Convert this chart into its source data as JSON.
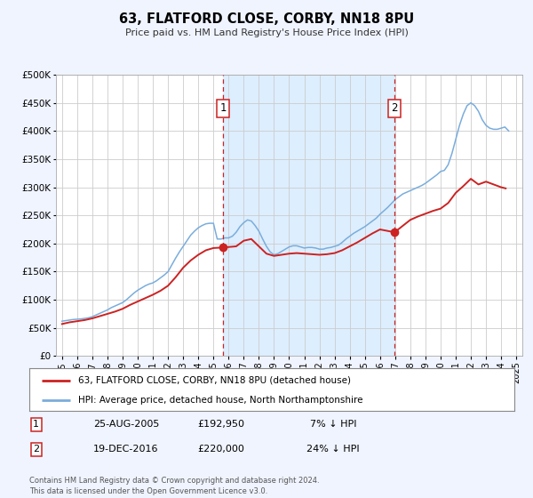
{
  "title": "63, FLATFORD CLOSE, CORBY, NN18 8PU",
  "subtitle": "Price paid vs. HM Land Registry's House Price Index (HPI)",
  "hpi_label": "HPI: Average price, detached house, North Northamptonshire",
  "price_label": "63, FLATFORD CLOSE, CORBY, NN18 8PU (detached house)",
  "ytick_values": [
    0,
    50000,
    100000,
    150000,
    200000,
    250000,
    300000,
    350000,
    400000,
    450000,
    500000
  ],
  "xlim_start": 1994.6,
  "xlim_end": 2025.4,
  "ylim_min": 0,
  "ylim_max": 500000,
  "sale1_date": 2005.647,
  "sale1_price": 192950,
  "sale1_label": "1",
  "sale1_text": "25-AUG-2005",
  "sale1_amount": "£192,950",
  "sale1_pct": "7% ↓ HPI",
  "sale2_date": 2016.963,
  "sale2_price": 220000,
  "sale2_label": "2",
  "sale2_text": "19-DEC-2016",
  "sale2_amount": "£220,000",
  "sale2_pct": "24% ↓ HPI",
  "bg_color": "#f0f4ff",
  "plot_bg_color": "#ffffff",
  "hpi_color": "#7aaddc",
  "price_color": "#cc2222",
  "sale_dot_color": "#cc2222",
  "vline_color": "#cc2222",
  "grid_color": "#cccccc",
  "shade_color": "#ddeeff",
  "footer_text": "Contains HM Land Registry data © Crown copyright and database right 2024.\nThis data is licensed under the Open Government Licence v3.0.",
  "hpi_data_x": [
    1995.0,
    1995.25,
    1995.5,
    1995.75,
    1996.0,
    1996.25,
    1996.5,
    1996.75,
    1997.0,
    1997.25,
    1997.5,
    1997.75,
    1998.0,
    1998.25,
    1998.5,
    1998.75,
    1999.0,
    1999.25,
    1999.5,
    1999.75,
    2000.0,
    2000.25,
    2000.5,
    2000.75,
    2001.0,
    2001.25,
    2001.5,
    2001.75,
    2002.0,
    2002.25,
    2002.5,
    2002.75,
    2003.0,
    2003.25,
    2003.5,
    2003.75,
    2004.0,
    2004.25,
    2004.5,
    2004.75,
    2005.0,
    2005.25,
    2005.5,
    2005.75,
    2006.0,
    2006.25,
    2006.5,
    2006.75,
    2007.0,
    2007.25,
    2007.5,
    2007.75,
    2008.0,
    2008.25,
    2008.5,
    2008.75,
    2009.0,
    2009.25,
    2009.5,
    2009.75,
    2010.0,
    2010.25,
    2010.5,
    2010.75,
    2011.0,
    2011.25,
    2011.5,
    2011.75,
    2012.0,
    2012.25,
    2012.5,
    2012.75,
    2013.0,
    2013.25,
    2013.5,
    2013.75,
    2014.0,
    2014.25,
    2014.5,
    2014.75,
    2015.0,
    2015.25,
    2015.5,
    2015.75,
    2016.0,
    2016.25,
    2016.5,
    2016.75,
    2017.0,
    2017.25,
    2017.5,
    2017.75,
    2018.0,
    2018.25,
    2018.5,
    2018.75,
    2019.0,
    2019.25,
    2019.5,
    2019.75,
    2020.0,
    2020.25,
    2020.5,
    2020.75,
    2021.0,
    2021.25,
    2021.5,
    2021.75,
    2022.0,
    2022.25,
    2022.5,
    2022.75,
    2023.0,
    2023.25,
    2023.5,
    2023.75,
    2024.0,
    2024.25,
    2024.5
  ],
  "hpi_data_y": [
    62000,
    63000,
    64000,
    65000,
    65500,
    66000,
    67000,
    68000,
    70000,
    73000,
    76000,
    79000,
    82000,
    86000,
    89000,
    92000,
    95000,
    100000,
    106000,
    112000,
    117000,
    121000,
    125000,
    128000,
    130000,
    134000,
    139000,
    144000,
    150000,
    162000,
    174000,
    185000,
    195000,
    205000,
    215000,
    222000,
    228000,
    232000,
    235000,
    236000,
    236000,
    208000,
    208000,
    210000,
    210000,
    213000,
    220000,
    230000,
    237000,
    242000,
    240000,
    232000,
    222000,
    208000,
    195000,
    185000,
    180000,
    182000,
    186000,
    190000,
    194000,
    196000,
    196000,
    194000,
    192000,
    193000,
    193000,
    192000,
    190000,
    190000,
    192000,
    193000,
    195000,
    197000,
    202000,
    208000,
    213000,
    218000,
    222000,
    226000,
    230000,
    235000,
    240000,
    245000,
    252000,
    258000,
    264000,
    271000,
    278000,
    283000,
    288000,
    291000,
    294000,
    297000,
    300000,
    303000,
    307000,
    312000,
    317000,
    322000,
    328000,
    330000,
    340000,
    360000,
    385000,
    410000,
    430000,
    445000,
    450000,
    445000,
    435000,
    420000,
    410000,
    405000,
    403000,
    403000,
    405000,
    407000,
    400000
  ],
  "price_data_x": [
    1995.0,
    1995.5,
    1996.0,
    1996.5,
    1997.0,
    1997.5,
    1998.0,
    1998.5,
    1999.0,
    1999.5,
    2000.0,
    2000.5,
    2001.0,
    2001.5,
    2002.0,
    2002.5,
    2003.0,
    2003.5,
    2004.0,
    2004.5,
    2005.0,
    2005.647,
    2006.5,
    2007.0,
    2007.5,
    2008.0,
    2008.5,
    2009.0,
    2009.5,
    2010.0,
    2010.5,
    2011.0,
    2011.5,
    2012.0,
    2012.5,
    2013.0,
    2013.5,
    2014.0,
    2014.5,
    2015.0,
    2015.5,
    2016.0,
    2016.963,
    2018.0,
    2018.5,
    2019.0,
    2019.5,
    2020.0,
    2020.5,
    2021.0,
    2021.5,
    2022.0,
    2022.5,
    2023.0,
    2023.5,
    2024.0,
    2024.3
  ],
  "price_data_y": [
    57000,
    60000,
    62000,
    64000,
    67000,
    71000,
    75000,
    79000,
    84000,
    91000,
    97000,
    103000,
    109000,
    116000,
    125000,
    140000,
    157000,
    170000,
    180000,
    188000,
    192000,
    192950,
    195000,
    205000,
    208000,
    195000,
    182000,
    178000,
    180000,
    182000,
    183000,
    182000,
    181000,
    180000,
    181000,
    183000,
    188000,
    195000,
    202000,
    210000,
    218000,
    225000,
    220000,
    242000,
    248000,
    253000,
    258000,
    262000,
    272000,
    290000,
    302000,
    315000,
    305000,
    310000,
    305000,
    300000,
    298000
  ]
}
